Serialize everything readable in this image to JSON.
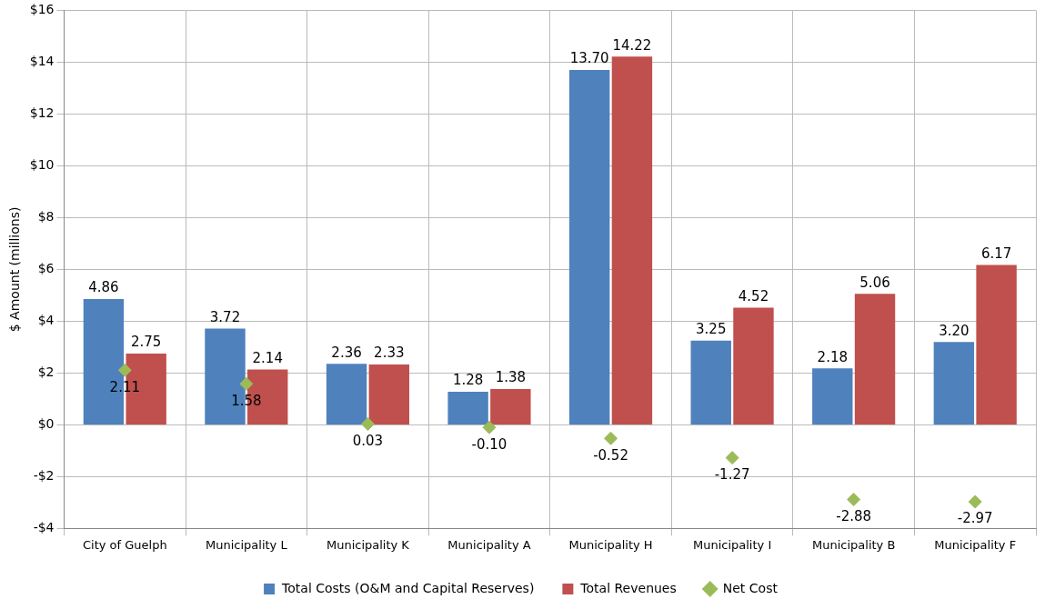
{
  "chart_data": {
    "type": "bar",
    "ylabel": "$ Amount (millions)",
    "categories": [
      "City of Guelph",
      "Municipality L",
      "Municipality K",
      "Municipality A",
      "Municipality H",
      "Municipality I",
      "Municipality B",
      "Municipality F"
    ],
    "series": [
      {
        "name": "Total Costs (O&M and Capital Reserves)",
        "color": "#4f81bd",
        "values": [
          4.86,
          3.72,
          2.36,
          1.28,
          13.7,
          3.25,
          2.18,
          3.2
        ],
        "value_labels": [
          "4.86",
          "3.72",
          "2.36",
          "1.28",
          "13.70",
          "3.25",
          "2.18",
          "3.20"
        ]
      },
      {
        "name": "Total Revenues",
        "color": "#c0504d",
        "values": [
          2.75,
          2.14,
          2.33,
          1.38,
          14.22,
          4.52,
          5.06,
          6.17
        ],
        "value_labels": [
          "2.75",
          "2.14",
          "2.33",
          "1.38",
          "14.22",
          "4.52",
          "5.06",
          "6.17"
        ]
      },
      {
        "name": "Net Cost",
        "type": "scatter",
        "marker": "diamond",
        "color": "#9bbb59",
        "values": [
          2.11,
          1.58,
          0.03,
          -0.1,
          -0.52,
          -1.27,
          -2.88,
          -2.97
        ],
        "value_labels": [
          "2.11",
          "1.58",
          "0.03",
          "-0.10",
          "-0.52",
          "-1.27",
          "-2.88",
          "-2.97"
        ]
      }
    ],
    "ylim": [
      -4,
      16
    ],
    "yticks": [
      {
        "value": -4,
        "label": "-$4"
      },
      {
        "value": -2,
        "label": "-$2"
      },
      {
        "value": 0,
        "label": "$0"
      },
      {
        "value": 2,
        "label": "$2"
      },
      {
        "value": 4,
        "label": "$4"
      },
      {
        "value": 6,
        "label": "$6"
      },
      {
        "value": 8,
        "label": "$8"
      },
      {
        "value": 10,
        "label": "$10"
      },
      {
        "value": 12,
        "label": "$12"
      },
      {
        "value": 14,
        "label": "$14"
      },
      {
        "value": 16,
        "label": "$16"
      }
    ],
    "grid": true,
    "legend": "bottom"
  }
}
